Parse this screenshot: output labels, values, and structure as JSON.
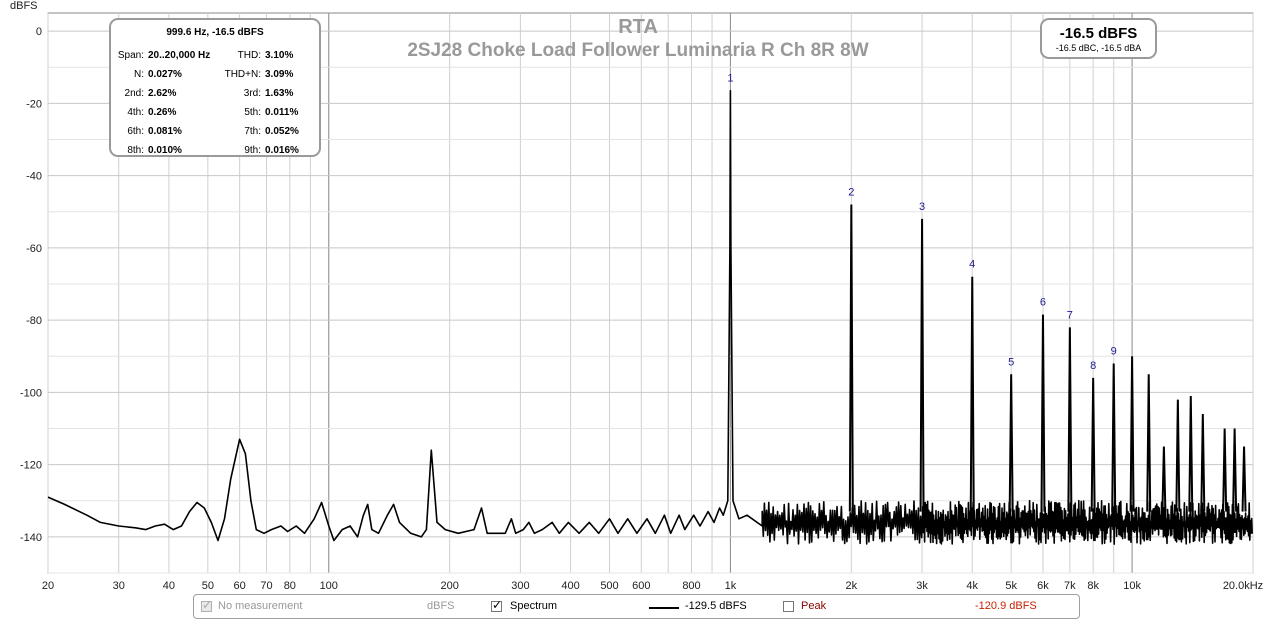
{
  "chart_data": {
    "type": "line",
    "title": "RTA",
    "subtitle": "2SJ28 Choke Load Follower Luminaria R Ch 8R 8W",
    "ylabel": "dBFS",
    "x_scale": "log",
    "xlim": [
      20,
      20000
    ],
    "ylim": [
      -150,
      5
    ],
    "x_ticks": [
      20,
      30,
      40,
      50,
      60,
      70,
      80,
      100,
      200,
      300,
      400,
      500,
      600,
      800,
      1000,
      2000,
      3000,
      4000,
      5000,
      6000,
      7000,
      8000,
      10000,
      20000
    ],
    "x_tick_labels": [
      "20",
      "30",
      "40",
      "50",
      "60",
      "70",
      "80",
      "100",
      "200",
      "300",
      "400",
      "500",
      "600",
      "800",
      "1k",
      "2k",
      "3k",
      "4k",
      "5k",
      "6k",
      "7k",
      "8k",
      "10k",
      "20.0kHz"
    ],
    "y_ticks": [
      0,
      -20,
      -40,
      -60,
      -80,
      -100,
      -120,
      -140
    ],
    "y_tick_labels": [
      "0",
      "-20",
      "-40",
      "-60",
      "-80",
      "-100",
      "-120",
      "-140"
    ],
    "grid": true,
    "harmonic_markers": [
      {
        "label": "1",
        "x": 1000,
        "y": -16.5
      },
      {
        "label": "2",
        "x": 2000,
        "y": -48
      },
      {
        "label": "3",
        "x": 3000,
        "y": -52
      },
      {
        "label": "4",
        "x": 4000,
        "y": -68
      },
      {
        "label": "5",
        "x": 5000,
        "y": -95
      },
      {
        "label": "6",
        "x": 6000,
        "y": -78.5
      },
      {
        "label": "7",
        "x": 7000,
        "y": -82
      },
      {
        "label": "8",
        "x": 8000,
        "y": -96
      },
      {
        "label": "9",
        "x": 9000,
        "y": -92
      }
    ],
    "series": [
      {
        "name": "Spectrum",
        "color": "#000000",
        "points": [
          [
            20,
            -129
          ],
          [
            22,
            -131
          ],
          [
            25,
            -134
          ],
          [
            27,
            -136
          ],
          [
            30,
            -137
          ],
          [
            33,
            -137.5
          ],
          [
            35,
            -138
          ],
          [
            37,
            -137
          ],
          [
            39,
            -136.5
          ],
          [
            41,
            -138
          ],
          [
            43,
            -137
          ],
          [
            45,
            -133
          ],
          [
            47,
            -130.5
          ],
          [
            49,
            -132
          ],
          [
            51,
            -136
          ],
          [
            53,
            -141
          ],
          [
            55,
            -135
          ],
          [
            57,
            -124
          ],
          [
            60,
            -113
          ],
          [
            62,
            -117
          ],
          [
            64,
            -130
          ],
          [
            66,
            -138
          ],
          [
            69,
            -139
          ],
          [
            72,
            -138
          ],
          [
            76,
            -137
          ],
          [
            79,
            -138.5
          ],
          [
            83,
            -137
          ],
          [
            87,
            -139
          ],
          [
            92,
            -135
          ],
          [
            96,
            -130.5
          ],
          [
            100,
            -137
          ],
          [
            103,
            -141
          ],
          [
            108,
            -138
          ],
          [
            113,
            -137
          ],
          [
            118,
            -140
          ],
          [
            122,
            -134
          ],
          [
            125,
            -131
          ],
          [
            128,
            -138
          ],
          [
            133,
            -139
          ],
          [
            140,
            -134
          ],
          [
            145,
            -131
          ],
          [
            150,
            -136
          ],
          [
            160,
            -139
          ],
          [
            170,
            -140
          ],
          [
            175,
            -138
          ],
          [
            180,
            -116
          ],
          [
            186,
            -136
          ],
          [
            195,
            -138
          ],
          [
            210,
            -139
          ],
          [
            230,
            -138
          ],
          [
            240,
            -132
          ],
          [
            248,
            -139
          ],
          [
            260,
            -139
          ],
          [
            275,
            -139
          ],
          [
            285,
            -135
          ],
          [
            292,
            -139
          ],
          [
            305,
            -138
          ],
          [
            315,
            -136
          ],
          [
            325,
            -139
          ],
          [
            340,
            -138
          ],
          [
            360,
            -136
          ],
          [
            375,
            -139
          ],
          [
            395,
            -136
          ],
          [
            420,
            -139
          ],
          [
            445,
            -136
          ],
          [
            470,
            -139
          ],
          [
            500,
            -135
          ],
          [
            525,
            -139
          ],
          [
            555,
            -135
          ],
          [
            585,
            -139
          ],
          [
            620,
            -135
          ],
          [
            650,
            -139
          ],
          [
            685,
            -134
          ],
          [
            710,
            -139
          ],
          [
            745,
            -134
          ],
          [
            770,
            -138
          ],
          [
            810,
            -134
          ],
          [
            840,
            -137
          ],
          [
            880,
            -133
          ],
          [
            910,
            -136
          ],
          [
            940,
            -132
          ],
          [
            960,
            -134
          ],
          [
            985,
            -130
          ],
          [
            997,
            -60
          ],
          [
            1000,
            -16.5
          ],
          [
            1003,
            -60
          ],
          [
            1015,
            -130
          ],
          [
            1050,
            -135
          ],
          [
            1100,
            -134
          ],
          [
            1200,
            -137
          ]
        ]
      }
    ],
    "harmonic_peaks": [
      [
        1000,
        -16.5
      ],
      [
        2000,
        -48
      ],
      [
        3000,
        -52
      ],
      [
        4000,
        -68
      ],
      [
        5000,
        -95
      ],
      [
        6000,
        -78.5
      ],
      [
        7000,
        -82
      ],
      [
        8000,
        -96
      ],
      [
        9000,
        -92
      ],
      [
        10000,
        -90
      ],
      [
        11000,
        -95
      ],
      [
        12000,
        -115
      ],
      [
        13000,
        -102
      ],
      [
        14000,
        -101
      ],
      [
        15000,
        -106
      ],
      [
        17000,
        -110
      ],
      [
        18000,
        -110
      ],
      [
        19000,
        -115
      ]
    ]
  },
  "info": {
    "header": "999.6 Hz, -16.5 dBFS",
    "rows": [
      {
        "k1": "Span:",
        "v1": "20..20,000 Hz",
        "k2": "THD:",
        "v2": "3.10%"
      },
      {
        "k1": "N:",
        "v1": "0.027%",
        "k2": "THD+N:",
        "v2": "3.09%"
      },
      {
        "k1": "2nd:",
        "v1": "2.62%",
        "k2": "3rd:",
        "v2": "1.63%"
      },
      {
        "k1": "4th:",
        "v1": "0.26%",
        "k2": "5th:",
        "v2": "0.011%"
      },
      {
        "k1": "6th:",
        "v1": "0.081%",
        "k2": "7th:",
        "v2": "0.052%"
      },
      {
        "k1": "8th:",
        "v1": "0.010%",
        "k2": "9th:",
        "v2": "0.016%"
      }
    ]
  },
  "level": {
    "main": "-16.5 dBFS",
    "sub": "-16.5 dBC, -16.5 dBA"
  },
  "legend": {
    "no_measurement": "No measurement",
    "unit": "dBFS",
    "spectrum": "Spectrum",
    "spectrum_value": "-129.5 dBFS",
    "peak": "Peak",
    "peak_value": "-120.9 dBFS",
    "peak_color": "#8b0000"
  }
}
